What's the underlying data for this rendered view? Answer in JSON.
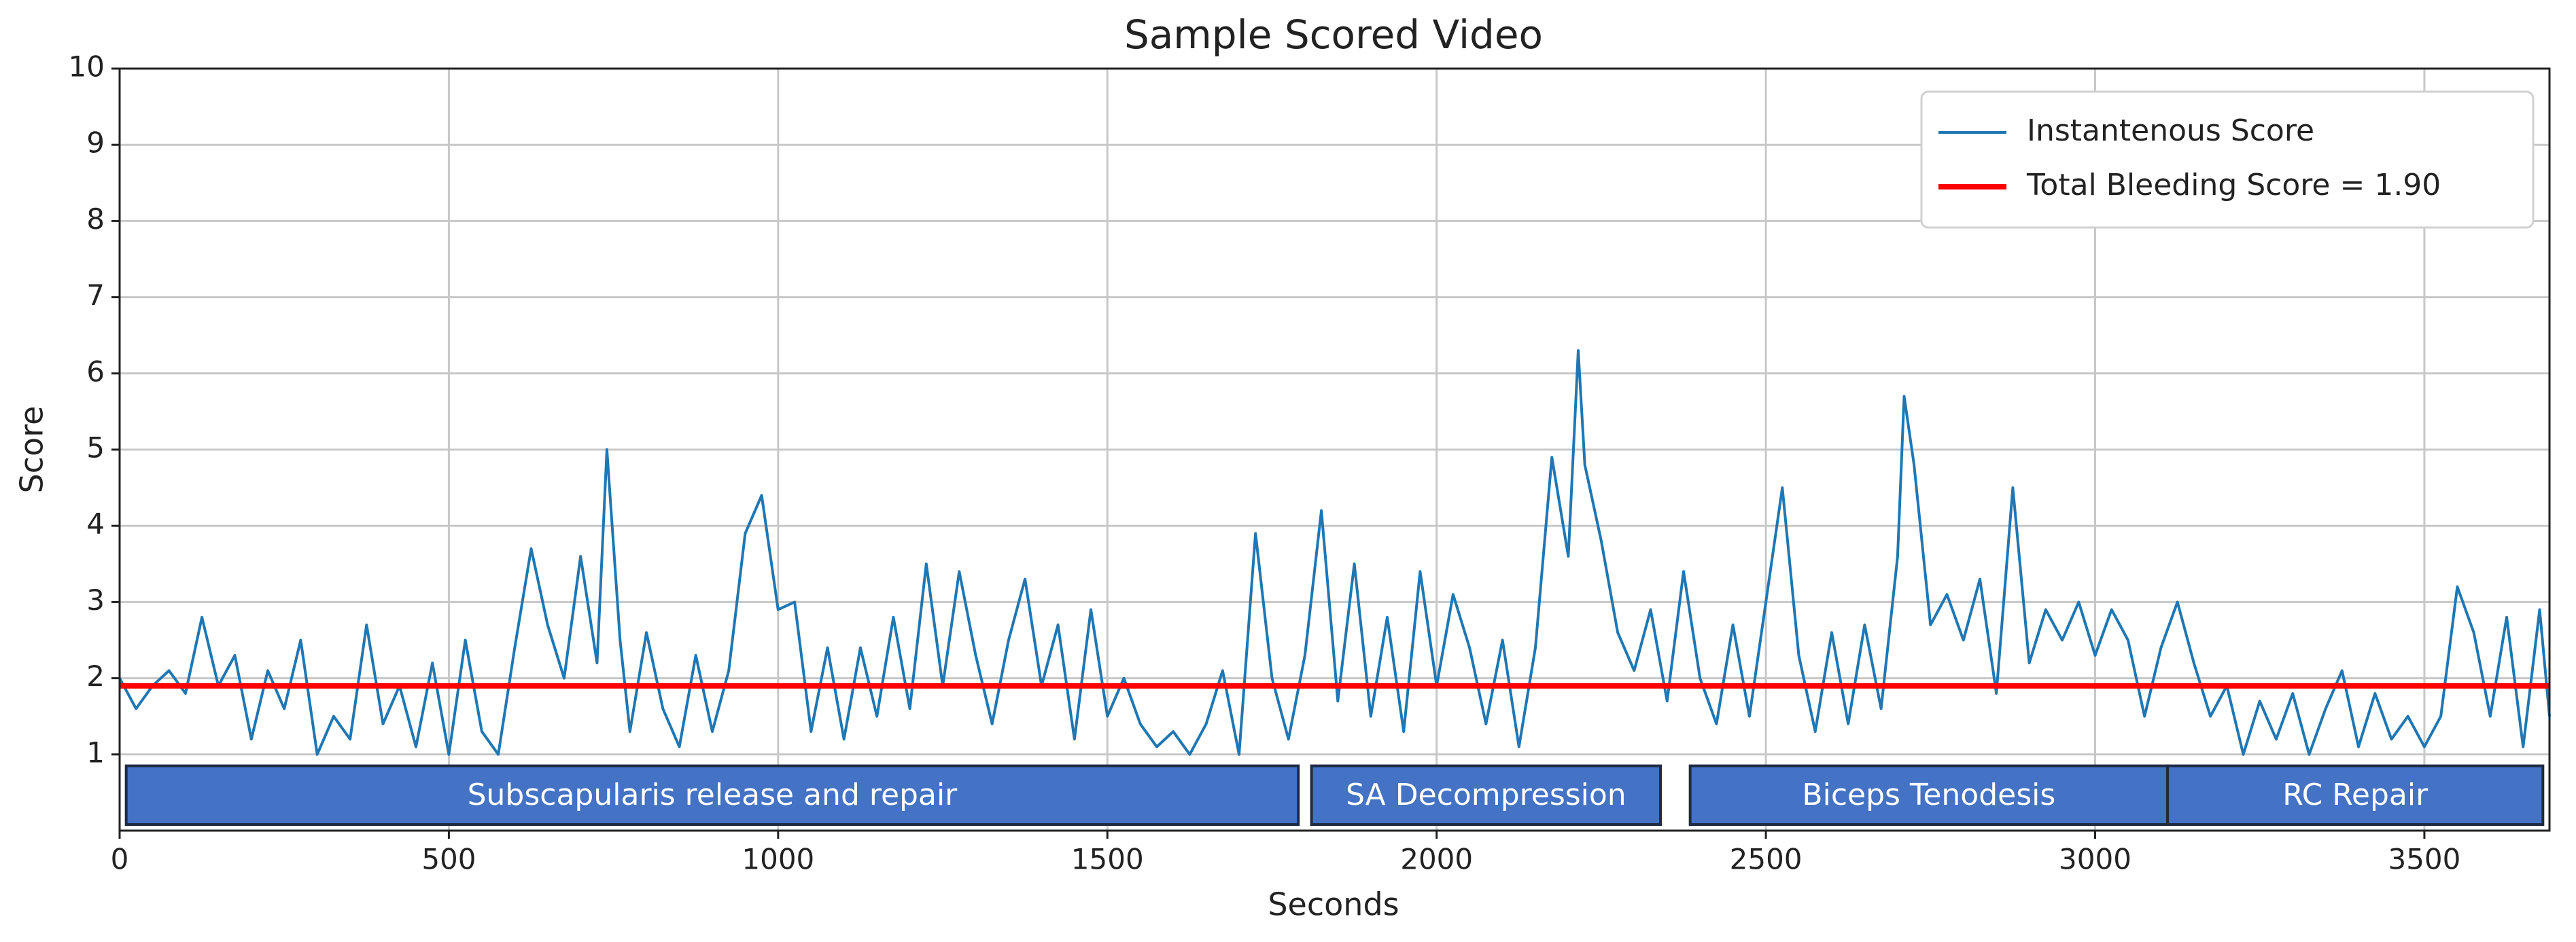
{
  "chart_data": {
    "type": "line",
    "title": "Sample Scored Video",
    "xlabel": "Seconds",
    "ylabel": "Score",
    "xlim": [
      0,
      3690
    ],
    "ylim": [
      0,
      10
    ],
    "xticks": [
      0,
      500,
      1000,
      1500,
      2000,
      2500,
      3000,
      3500
    ],
    "yticks": [
      1,
      2,
      3,
      4,
      5,
      6,
      7,
      8,
      9,
      10
    ],
    "grid": true,
    "legend": "upper right",
    "x": [
      0,
      25,
      50,
      75,
      100,
      125,
      150,
      175,
      200,
      225,
      250,
      275,
      300,
      325,
      350,
      375,
      400,
      425,
      450,
      475,
      500,
      525,
      550,
      575,
      600,
      625,
      650,
      675,
      700,
      725,
      740,
      760,
      775,
      800,
      825,
      850,
      875,
      900,
      925,
      950,
      975,
      1000,
      1025,
      1050,
      1075,
      1100,
      1125,
      1150,
      1175,
      1200,
      1225,
      1250,
      1275,
      1300,
      1325,
      1350,
      1375,
      1400,
      1425,
      1450,
      1475,
      1500,
      1525,
      1550,
      1575,
      1600,
      1625,
      1650,
      1675,
      1700,
      1725,
      1750,
      1775,
      1800,
      1825,
      1850,
      1875,
      1900,
      1925,
      1950,
      1975,
      2000,
      2025,
      2050,
      2075,
      2100,
      2125,
      2150,
      2175,
      2200,
      2215,
      2225,
      2250,
      2275,
      2300,
      2325,
      2350,
      2375,
      2400,
      2425,
      2450,
      2475,
      2500,
      2525,
      2550,
      2575,
      2600,
      2625,
      2650,
      2675,
      2700,
      2710,
      2725,
      2750,
      2775,
      2800,
      2825,
      2850,
      2875,
      2900,
      2925,
      2950,
      2975,
      3000,
      3025,
      3050,
      3075,
      3100,
      3125,
      3150,
      3175,
      3200,
      3225,
      3250,
      3275,
      3300,
      3325,
      3350,
      3375,
      3400,
      3425,
      3450,
      3475,
      3500,
      3525,
      3550,
      3575,
      3600,
      3625,
      3650,
      3675,
      3690
    ],
    "series": [
      {
        "name": "Instantenous Score",
        "color": "#1f77b4",
        "values": [
          2.0,
          1.6,
          1.9,
          2.1,
          1.8,
          2.8,
          1.9,
          2.3,
          1.2,
          2.1,
          1.6,
          2.5,
          1.0,
          1.5,
          1.2,
          2.7,
          1.4,
          1.9,
          1.1,
          2.2,
          1.0,
          2.5,
          1.3,
          1.0,
          2.4,
          3.7,
          2.7,
          2.0,
          3.6,
          2.2,
          5.0,
          2.5,
          1.3,
          2.6,
          1.6,
          1.1,
          2.3,
          1.3,
          2.1,
          3.9,
          4.4,
          2.9,
          3.0,
          1.3,
          2.4,
          1.2,
          2.4,
          1.5,
          2.8,
          1.6,
          3.5,
          1.9,
          3.4,
          2.3,
          1.4,
          2.5,
          3.3,
          1.9,
          2.7,
          1.2,
          2.9,
          1.5,
          2.0,
          1.4,
          1.1,
          1.3,
          1.0,
          1.4,
          2.1,
          1.0,
          3.9,
          2.0,
          1.2,
          2.3,
          4.2,
          1.7,
          3.5,
          1.5,
          2.8,
          1.3,
          3.4,
          1.9,
          3.1,
          2.4,
          1.4,
          2.5,
          1.1,
          2.4,
          4.9,
          3.6,
          6.3,
          4.8,
          3.8,
          2.6,
          2.1,
          2.9,
          1.7,
          3.4,
          2.0,
          1.4,
          2.7,
          1.5,
          3.0,
          4.5,
          2.3,
          1.3,
          2.6,
          1.4,
          2.7,
          1.6,
          3.6,
          5.7,
          4.8,
          2.7,
          3.1,
          2.5,
          3.3,
          1.8,
          4.5,
          2.2,
          2.9,
          2.5,
          3.0,
          2.3,
          2.9,
          2.5,
          1.5,
          2.4,
          3.0,
          2.2,
          1.5,
          1.9,
          1.0,
          1.7,
          1.2,
          1.8,
          1.0,
          1.6,
          2.1,
          1.1,
          1.8,
          1.2,
          1.5,
          1.1,
          1.5,
          3.2,
          2.6,
          1.5,
          2.8,
          1.1,
          2.9,
          1.5
        ]
      }
    ],
    "reference_line": {
      "name": "Total Bleeding Score = 1.90",
      "value": 1.9,
      "color": "#ff0000"
    },
    "phases": [
      {
        "label": "Subscapularis release and repair",
        "start": 10,
        "end": 1790
      },
      {
        "label": "SA Decompression",
        "start": 1810,
        "end": 2340
      },
      {
        "label": "Biceps Tenodesis",
        "start": 2385,
        "end": 3110
      },
      {
        "label": "RC Repair",
        "start": 3110,
        "end": 3680
      }
    ]
  }
}
